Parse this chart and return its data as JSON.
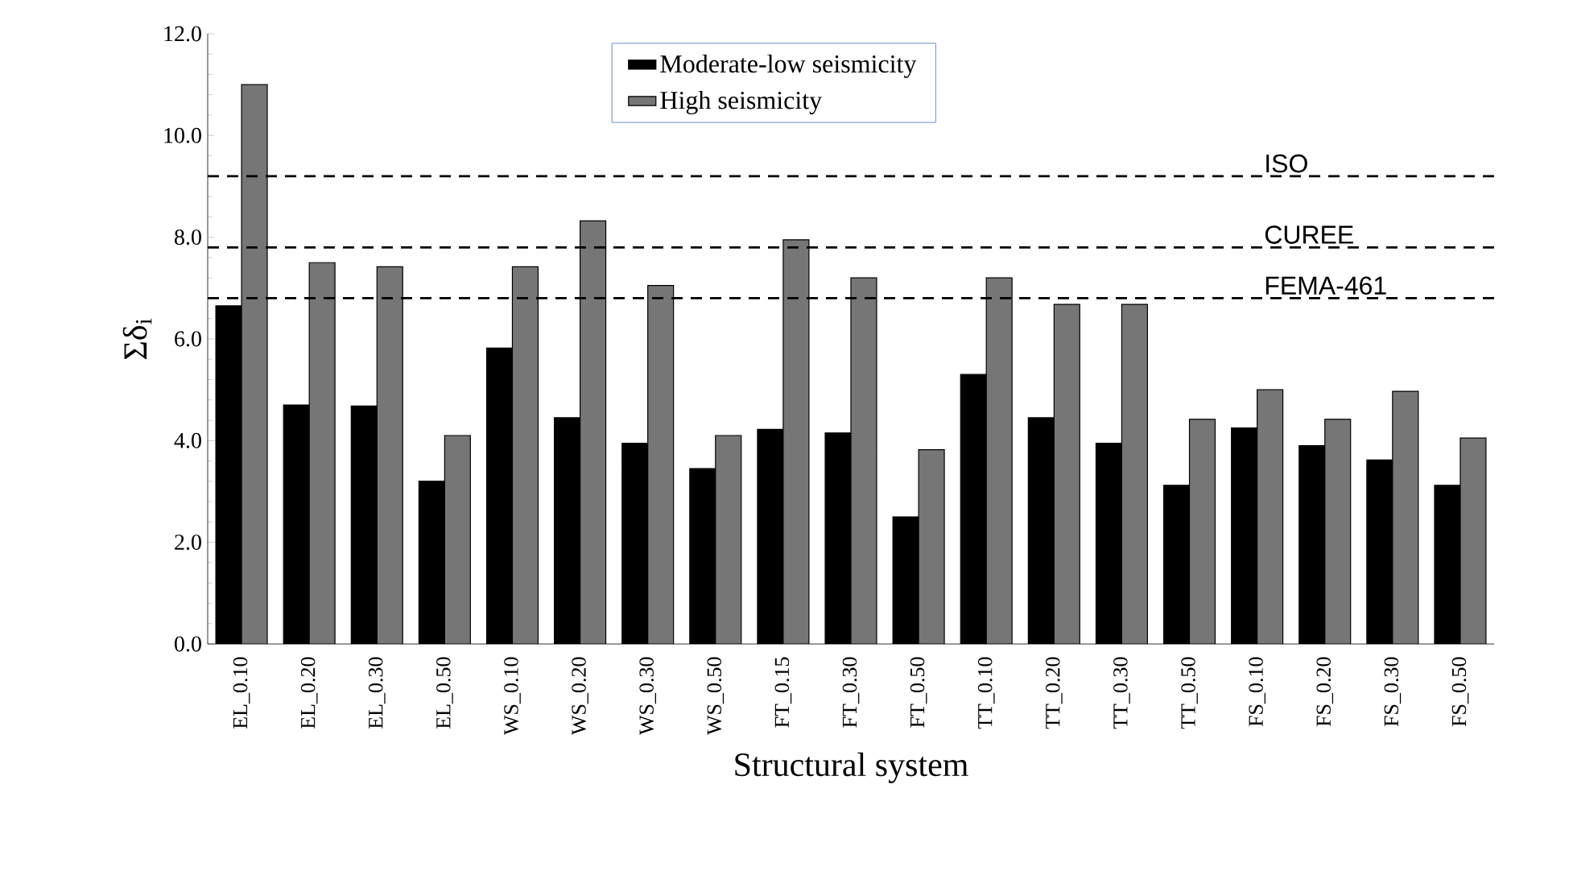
{
  "chart_data": {
    "type": "bar",
    "xlabel": "Structural system",
    "ylabel": "Σδ$_{i}$",
    "categories": [
      "EL_0.10",
      "EL_0.20",
      "EL_0.30",
      "EL_0.50",
      "WS_0.10",
      "WS_0.20",
      "WS_0.30",
      "WS_0.50",
      "FT_0.15",
      "FT_0.30",
      "FT_0.50",
      "TT_0.10",
      "TT_0.20",
      "TT_0.30",
      "TT_0.50",
      "FS_0.10",
      "FS_0.20",
      "FS_0.30",
      "FS_0.50"
    ],
    "series": [
      {
        "name": "Moderate-low seismicity",
        "color": "#000000",
        "values": [
          6.65,
          4.7,
          4.68,
          3.2,
          5.82,
          4.45,
          3.95,
          3.45,
          4.22,
          4.15,
          2.5,
          5.3,
          4.45,
          3.95,
          3.12,
          4.25,
          3.9,
          3.62,
          3.12
        ]
      },
      {
        "name": "High seismicity",
        "color": "#767676",
        "values": [
          11.0,
          7.5,
          7.42,
          4.1,
          7.42,
          8.32,
          7.05,
          4.1,
          7.95,
          7.2,
          3.82,
          7.2,
          6.68,
          6.68,
          4.42,
          5.0,
          4.42,
          4.97,
          4.05
        ]
      }
    ],
    "ylim": [
      0,
      12
    ],
    "yticks": [
      {
        "value": 0,
        "label": "0.0"
      },
      {
        "value": 2,
        "label": "2.0"
      },
      {
        "value": 4,
        "label": "4.0"
      },
      {
        "value": 6,
        "label": "6.0"
      },
      {
        "value": 8,
        "label": "8.0"
      },
      {
        "value": 10,
        "label": "10.0"
      },
      {
        "value": 12,
        "label": "12.0"
      }
    ],
    "ref_lines": [
      {
        "axis": "y",
        "value": 9.2,
        "label": "ISO",
        "line_style": "dashed"
      },
      {
        "axis": "y",
        "value": 7.8,
        "label": "CUREE",
        "line_style": "dashed"
      },
      {
        "axis": "y",
        "value": 6.8,
        "label": "FEMA-461",
        "line_style": "dashed"
      }
    ],
    "grid": false,
    "legend": "top"
  }
}
